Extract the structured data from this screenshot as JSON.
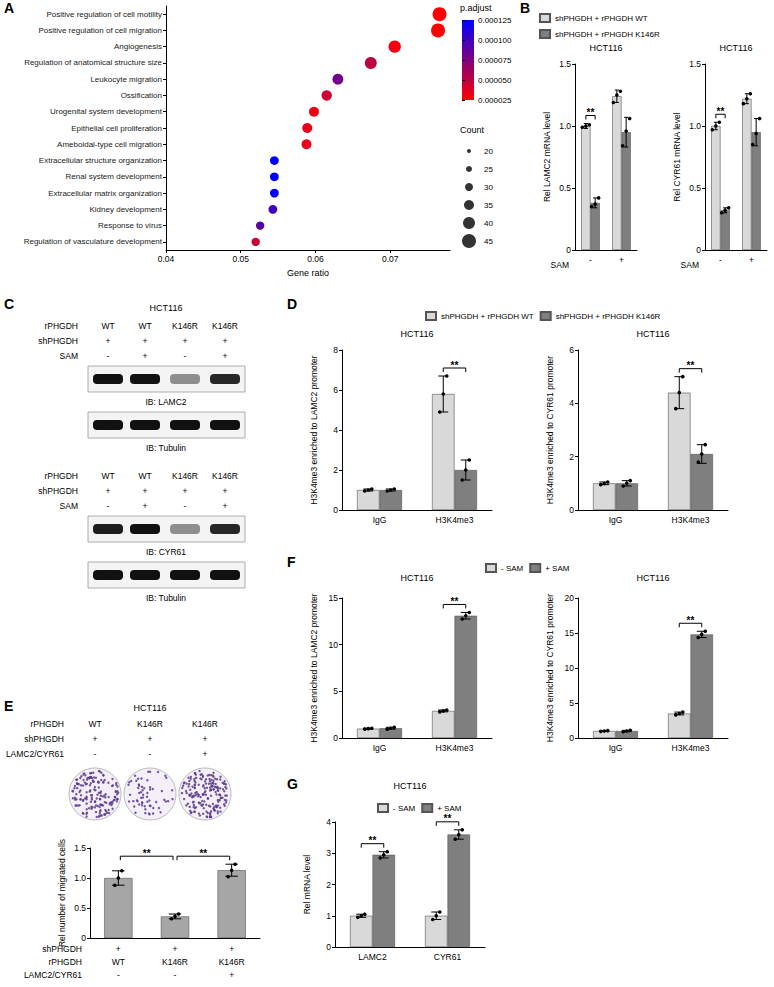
{
  "panel_labels": [
    "A",
    "B",
    "C",
    "D",
    "E",
    "F",
    "G"
  ],
  "chart_data": [
    {
      "type": "dot",
      "categories": [
        "Positive regulation of cell motility",
        "Positive regulation of cell migration",
        "Angiogenesis",
        "Regulation of anatomical structure size",
        "Leukocyte migration",
        "Ossification",
        "Urogenital system development",
        "Epithelial cell proliferation",
        "Ameboidal-type cell migration",
        "Extracellular structure organization",
        "Renal system development",
        "Extracellular matrix organization",
        "Kidney development",
        "Response to virus",
        "Regulation of vasculature development"
      ],
      "values": [
        0.0766,
        0.0764,
        0.0706,
        0.0674,
        0.063,
        0.0615,
        0.0598,
        0.0589,
        0.0588,
        0.0545,
        0.0545,
        0.0545,
        0.0543,
        0.0526,
        0.052
      ],
      "counts": [
        45,
        45,
        41,
        40,
        37,
        36,
        35,
        35,
        35,
        32,
        32,
        32,
        32,
        31,
        31
      ],
      "p_adjust": [
        2.5e-05,
        2.5e-05,
        3e-05,
        5e-05,
        8e-05,
        4.5e-05,
        3e-05,
        3.5e-05,
        3.5e-05,
        0.000125,
        0.000125,
        0.000122,
        0.0001,
        9e-05,
        4.5e-05
      ],
      "xlabel": "Gene ratio",
      "xlim": [
        0.04,
        0.078
      ],
      "xticks": [
        0.04,
        0.05,
        0.06,
        0.07
      ],
      "grid": false,
      "colorbar": {
        "title": "p.adjust",
        "range": [
          2.5e-05,
          0.000125
        ],
        "ticks": [
          2.5e-05,
          {
            "value": 5e-05,
            "label": "0.000050"
          },
          7.5e-05,
          {
            "value": 0.0001,
            "label": "0.000100"
          },
          0.000125
        ]
      },
      "size_legend": {
        "title": "Count",
        "values": [
          20,
          25,
          30,
          35,
          40,
          45
        ]
      }
    },
    {
      "type": "bar",
      "title": "HCT116",
      "legend": "top",
      "categories": [
        "-",
        "+"
      ],
      "xlabel": "SAM",
      "ylabel": "Rel LAMC2 mRNA level",
      "ylim": [
        0,
        1.5
      ],
      "yticks": [
        0,
        0.5,
        {
          "value": 1,
          "label": "1.0"
        },
        1.5
      ],
      "grid": false,
      "series": [
        {
          "name": "shPHGDH + rPHGDH WT",
          "color": "#d9d9d9",
          "values": [
            1.0,
            1.24
          ],
          "errors": [
            0.02,
            0.05
          ],
          "points": [
            [
              0.99,
              1.0,
              1.01
            ],
            [
              1.19,
              1.25,
              1.28
            ]
          ]
        },
        {
          "name": "shPHGDH + rPHGDH K146R",
          "color": "#7f7f7f",
          "values": [
            0.38,
            0.95
          ],
          "errors": [
            0.04,
            0.12
          ],
          "points": [
            [
              0.35,
              0.37,
              0.42
            ],
            [
              0.84,
              0.96,
              1.06
            ]
          ]
        }
      ],
      "annotations": [
        {
          "category": "-",
          "text": "**"
        }
      ]
    },
    {
      "type": "bar",
      "title": "HCT116",
      "categories": [
        "-",
        "+"
      ],
      "xlabel": "SAM",
      "ylabel": "Rel CYR61 mRNA level",
      "ylim": [
        0,
        1.5
      ],
      "yticks": [
        0,
        0.5,
        {
          "value": 1,
          "label": "1.0"
        },
        1.5
      ],
      "grid": false,
      "series": [
        {
          "name": "shPHGDH + rPHGDH WT",
          "color": "#d9d9d9",
          "values": [
            1.0,
            1.22
          ],
          "errors": [
            0.03,
            0.04
          ],
          "points": [
            [
              0.97,
              1.0,
              1.03
            ],
            [
              1.18,
              1.22,
              1.26
            ]
          ]
        },
        {
          "name": "shPHGDH + rPHGDH K146R",
          "color": "#7f7f7f",
          "values": [
            0.32,
            0.95
          ],
          "errors": [
            0.02,
            0.11
          ],
          "points": [
            [
              0.3,
              0.32,
              0.34
            ],
            [
              0.85,
              0.94,
              1.06
            ]
          ]
        }
      ],
      "annotations": [
        {
          "category": "-",
          "text": "**"
        }
      ]
    },
    {
      "type": "bar",
      "title": "HCT116",
      "legend": "top",
      "categories": [
        "IgG",
        "H3K4me3"
      ],
      "ylabel": "H3K4me3 enriched to LAMC2 promoter",
      "ylim": [
        0,
        8
      ],
      "yticks": [
        0,
        2,
        4,
        6,
        8
      ],
      "grid": false,
      "series": [
        {
          "name": "shPHGDH + rPHGDH WT",
          "color": "#d9d9d9",
          "values": [
            1.0,
            5.8
          ],
          "errors": [
            0.05,
            0.9
          ],
          "points": [
            [
              0.95,
              1.0,
              1.05
            ],
            [
              4.9,
              5.8,
              6.7
            ]
          ]
        },
        {
          "name": "shPHGDH + rPHGDH K146R",
          "color": "#7f7f7f",
          "values": [
            1.0,
            2.0
          ],
          "errors": [
            0.05,
            0.5
          ],
          "points": [
            [
              0.95,
              1.0,
              1.05
            ],
            [
              1.5,
              2.0,
              2.5
            ]
          ]
        }
      ],
      "annotations": [
        {
          "category": "H3K4me3",
          "text": "**"
        }
      ]
    },
    {
      "type": "bar",
      "title": "HCT116",
      "categories": [
        "IgG",
        "H3K4me3"
      ],
      "ylabel": "H3K4me3 enriched to CYR61 promoter",
      "ylim": [
        0,
        6
      ],
      "yticks": [
        0,
        2,
        4,
        6
      ],
      "grid": false,
      "series": [
        {
          "name": "shPHGDH + rPHGDH WT",
          "color": "#d9d9d9",
          "values": [
            1.0,
            4.4
          ],
          "errors": [
            0.05,
            0.6
          ],
          "points": [
            [
              0.95,
              1.0,
              1.05
            ],
            [
              3.8,
              4.4,
              5.0
            ]
          ]
        },
        {
          "name": "shPHGDH + rPHGDH K146R",
          "color": "#7f7f7f",
          "values": [
            1.0,
            2.1
          ],
          "errors": [
            0.1,
            0.35
          ],
          "points": [
            [
              0.9,
              1.0,
              1.1
            ],
            [
              1.8,
              2.1,
              2.45
            ]
          ]
        }
      ],
      "annotations": [
        {
          "category": "H3K4me3",
          "text": "**"
        }
      ]
    },
    {
      "type": "bar",
      "categories": [
        null,
        null,
        null
      ],
      "x_table": {
        "rows": [
          {
            "label": "shPHGDH",
            "values": [
              "+",
              "+",
              "+"
            ]
          },
          {
            "label": "rPHGDH",
            "values": [
              "WT",
              "K146R",
              "K146R"
            ]
          },
          {
            "label": "LAMC2/CYR61",
            "values": [
              "-",
              "-",
              "+"
            ]
          }
        ]
      },
      "ylabel": "Rel number of migrated cells",
      "ylim": [
        0,
        1.5
      ],
      "yticks": [
        0,
        0.5,
        {
          "value": 1,
          "label": "1.0"
        },
        1.5
      ],
      "grid": false,
      "series": [
        {
          "color": "#a6a6a6",
          "values": [
            1.0,
            0.36,
            1.13
          ],
          "errors": [
            0.12,
            0.04,
            0.1
          ],
          "points": [
            [
              0.88,
              1.0,
              1.12
            ],
            [
              0.32,
              0.36,
              0.4
            ],
            [
              1.02,
              1.13,
              1.23
            ]
          ]
        }
      ],
      "annotations": [
        {
          "from": 0,
          "to": 1,
          "text": "**"
        },
        {
          "from": 1,
          "to": 2,
          "text": "**"
        }
      ]
    },
    {
      "type": "bar",
      "title": "HCT116",
      "legend": "top",
      "categories": [
        "IgG",
        "H3K4me3"
      ],
      "ylabel": "H3K4me3 enriched to LAMC2 promoter",
      "ylim": [
        0,
        15
      ],
      "yticks": [
        0,
        5,
        10,
        15
      ],
      "grid": false,
      "series": [
        {
          "name": "- SAM",
          "color": "#d9d9d9",
          "values": [
            1.0,
            2.9
          ],
          "errors": [
            0.05,
            0.1
          ],
          "points": [
            [
              0.95,
              1.0,
              1.05
            ],
            [
              2.8,
              2.9,
              3.0
            ]
          ]
        },
        {
          "name": "+ SAM",
          "color": "#7f7f7f",
          "values": [
            1.05,
            13.1
          ],
          "errors": [
            0.1,
            0.35
          ],
          "points": [
            [
              0.95,
              1.05,
              1.15
            ],
            [
              12.75,
              13.1,
              13.45
            ]
          ]
        }
      ],
      "annotations": [
        {
          "category": "H3K4me3",
          "text": "**"
        }
      ]
    },
    {
      "type": "bar",
      "title": "HCT116",
      "categories": [
        "IgG",
        "H3K4me3"
      ],
      "ylabel": "H3K4me3 enriched to CYR61 promoter",
      "ylim": [
        0,
        20
      ],
      "yticks": [
        0,
        5,
        10,
        15,
        20
      ],
      "grid": false,
      "series": [
        {
          "name": "- SAM",
          "color": "#d9d9d9",
          "values": [
            1.0,
            3.5
          ],
          "errors": [
            0.05,
            0.2
          ],
          "points": [
            [
              0.95,
              1.0,
              1.05
            ],
            [
              3.3,
              3.5,
              3.7
            ]
          ]
        },
        {
          "name": "+ SAM",
          "color": "#7f7f7f",
          "values": [
            1.0,
            14.8
          ],
          "errors": [
            0.1,
            0.45
          ],
          "points": [
            [
              0.9,
              1.0,
              1.1
            ],
            [
              14.35,
              14.8,
              15.25
            ]
          ]
        }
      ],
      "annotations": [
        {
          "category": "H3K4me3",
          "text": "**"
        }
      ]
    },
    {
      "type": "bar",
      "title": "HCT116",
      "legend": "top",
      "categories": [
        "LAMC2",
        "CYR61"
      ],
      "ylabel": "Rel mRNA level",
      "ylim": [
        0,
        4
      ],
      "yticks": [
        0,
        1,
        2,
        3,
        4
      ],
      "grid": false,
      "series": [
        {
          "name": "- SAM",
          "color": "#d9d9d9",
          "values": [
            1.0,
            1.0
          ],
          "errors": [
            0.05,
            0.12
          ],
          "points": [
            [
              0.95,
              1.0,
              1.05
            ],
            [
              0.88,
              1.0,
              1.12
            ]
          ]
        },
        {
          "name": "+ SAM",
          "color": "#7f7f7f",
          "values": [
            2.95,
            3.6
          ],
          "errors": [
            0.1,
            0.15
          ],
          "points": [
            [
              2.85,
              2.95,
              3.05
            ],
            [
              3.45,
              3.6,
              3.75
            ]
          ]
        }
      ],
      "annotations": [
        {
          "category": "LAMC2",
          "text": "**"
        },
        {
          "category": "CYR61",
          "text": "**"
        }
      ]
    }
  ],
  "blots": {
    "title": "HCT116",
    "blocks": [
      {
        "lanes": [
          {
            "label": "rPHGDH",
            "values": [
              "WT",
              "WT",
              "K146R",
              "K146R"
            ]
          },
          {
            "label": "shPHGDH",
            "values": [
              "+",
              "+",
              "+",
              "+"
            ]
          },
          {
            "label": "SAM",
            "values": [
              "-",
              "+",
              "-",
              "+"
            ]
          }
        ],
        "rows": [
          {
            "label": "IB: LAMC2",
            "bands": [
              1,
              1,
              0.45,
              0.9
            ]
          },
          {
            "label": "IB: Tubulin",
            "bands": [
              1,
              1,
              1,
              1
            ]
          }
        ]
      },
      {
        "lanes": [
          {
            "label": "rPHGDH",
            "values": [
              "WT",
              "WT",
              "K146R",
              "K146R"
            ]
          },
          {
            "label": "shPHGDH",
            "values": [
              "+",
              "+",
              "+",
              "+"
            ]
          },
          {
            "label": "SAM",
            "values": [
              "-",
              "+",
              "-",
              "+"
            ]
          }
        ],
        "rows": [
          {
            "label": "IB: CYR61",
            "bands": [
              0.95,
              1,
              0.45,
              0.9
            ]
          },
          {
            "label": "IB: Tubulin",
            "bands": [
              1,
              1,
              1,
              1
            ]
          }
        ]
      }
    ]
  },
  "migration_header": {
    "title": "HCT116",
    "rows": [
      {
        "label": "rPHGDH",
        "values": [
          "WT",
          "K146R",
          "K146R"
        ]
      },
      {
        "label": "shPHGDH",
        "values": [
          "+",
          "+",
          "+"
        ]
      },
      {
        "label": "LAMC2/CYR61",
        "values": [
          "-",
          "-",
          "+"
        ]
      }
    ]
  }
}
